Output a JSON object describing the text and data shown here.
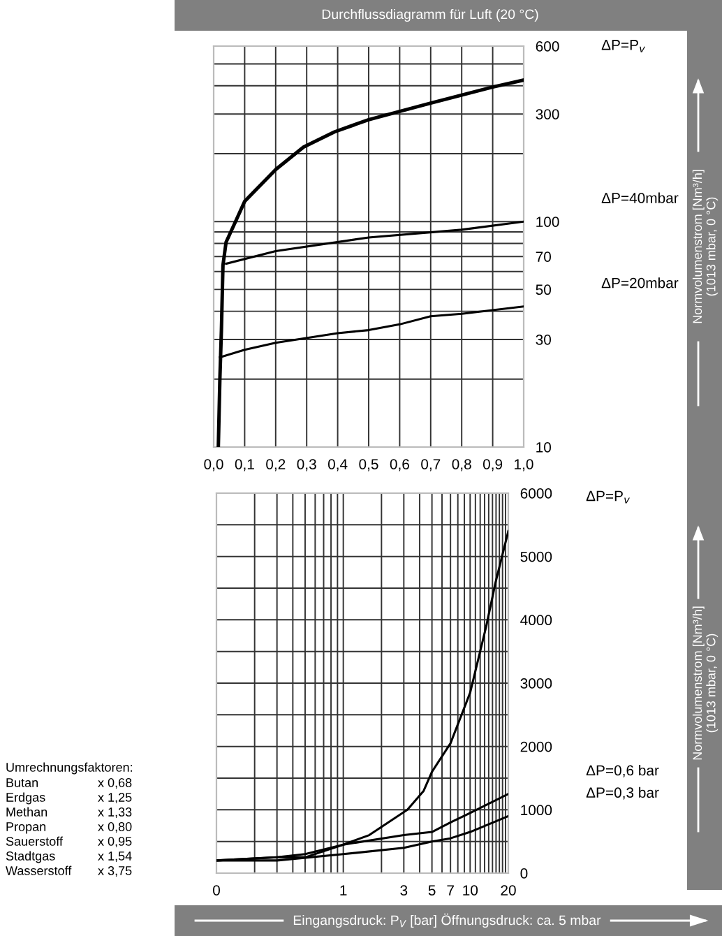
{
  "chart_data": [
    {
      "type": "line",
      "title": "Durchflussdiagramm für Luft (20 °C)",
      "ylabel": "Normvolumenstrom [Nm³/h]\n(1013 mbar, 0 °C)",
      "log": "y",
      "grid": true,
      "xlim": [
        0,
        1
      ],
      "xticks": [
        {
          "value": 0,
          "label": "0,0"
        },
        {
          "value": 0.1,
          "label": "0,1"
        },
        {
          "value": 0.2,
          "label": "0,2"
        },
        {
          "value": 0.3,
          "label": "0,3"
        },
        {
          "value": 0.4,
          "label": "0,4"
        },
        {
          "value": 0.5,
          "label": "0,5"
        },
        {
          "value": 0.6,
          "label": "0,6"
        },
        {
          "value": 0.7,
          "label": "0,7"
        },
        {
          "value": 0.8,
          "label": "0,8"
        },
        {
          "value": 0.9,
          "label": "0,9"
        },
        {
          "value": 1,
          "label": "1,0"
        }
      ],
      "ylim": [
        10,
        600
      ],
      "yticks": [
        10,
        {
          "value": 20,
          "label": null
        },
        30,
        {
          "value": 40,
          "label": null
        },
        50,
        {
          "value": 60,
          "label": null
        },
        70,
        {
          "value": 80,
          "label": null
        },
        {
          "value": 90,
          "label": null
        },
        100,
        {
          "value": 200,
          "label": null
        },
        300,
        {
          "value": 400,
          "label": null
        },
        {
          "value": 500,
          "label": null
        },
        600
      ],
      "series": [
        {
          "name": "ΔP=P$_{v}$",
          "color": "#000000",
          "x": [
            0.015,
            0.02,
            0.025,
            0.03,
            0.04,
            0.072,
            0.1,
            0.2,
            0.29,
            0.39,
            0.5,
            0.7,
            0.9,
            1.0
          ],
          "values": [
            10,
            20,
            33,
            64,
            81,
            101,
            123,
            170,
            214,
            250,
            283,
            335,
            395,
            424
          ]
        },
        {
          "name": "ΔP=40mbar",
          "color": "#000000",
          "x": [
            0.04,
            0.2,
            0.5,
            0.8,
            1.0
          ],
          "values": [
            65,
            74,
            85,
            92,
            100
          ]
        },
        {
          "name": "ΔP=20mbar",
          "color": "#000000",
          "x": [
            0.02,
            0.1,
            0.2,
            0.4,
            0.5,
            0.6,
            0.7,
            0.8,
            1.0
          ],
          "values": [
            25,
            27,
            29,
            32,
            33,
            35,
            38,
            39,
            42
          ]
        }
      ]
    },
    {
      "type": "line",
      "xlabel": "Eingangsdruck: P$_{V}$ [bar] Öffnungsdruck: ca. 5 mbar",
      "ylabel": "Normvolumenstrom [Nm³/h]\n(1013 mbar, 0 °C)",
      "log": "x",
      "grid": true,
      "xlim": [
        0.1,
        20
      ],
      "xticks": [
        {
          "value": 0.1,
          "label": "0"
        },
        {
          "value": 0.2,
          "label": null
        },
        {
          "value": 0.3,
          "label": null
        },
        {
          "value": 0.4,
          "label": null
        },
        {
          "value": 0.5,
          "label": null
        },
        {
          "value": 0.6,
          "label": null
        },
        {
          "value": 0.7,
          "label": null
        },
        {
          "value": 0.8,
          "label": null
        },
        {
          "value": 0.9,
          "label": null
        },
        1,
        {
          "value": 2,
          "label": null
        },
        3,
        {
          "value": 4,
          "label": null
        },
        5,
        {
          "value": 6,
          "label": null
        },
        7,
        {
          "value": 8,
          "label": null
        },
        {
          "value": 9,
          "label": null
        },
        10,
        {
          "value": 11,
          "label": null
        },
        {
          "value": 12,
          "label": null
        },
        {
          "value": 13,
          "label": null
        },
        {
          "value": 14,
          "label": null
        },
        {
          "value": 15,
          "label": null
        },
        {
          "value": 16,
          "label": null
        },
        {
          "value": 17,
          "label": null
        },
        {
          "value": 18,
          "label": null
        },
        {
          "value": 19,
          "label": null
        },
        20
      ],
      "ylim": [
        0,
        6000
      ],
      "yticks": [
        0,
        {
          "value": 500,
          "label": null
        },
        1000,
        {
          "value": 1500,
          "label": null
        },
        2000,
        {
          "value": 2500,
          "label": null
        },
        3000,
        {
          "value": 3500,
          "label": null
        },
        4000,
        {
          "value": 4500,
          "label": null
        },
        5000,
        {
          "value": 5500,
          "label": null
        },
        6000
      ],
      "series": [
        {
          "name": "ΔP=P$_{v}$",
          "color": "#000000",
          "x": [
            0.1,
            0.3,
            0.5,
            1,
            1.6,
            3.2,
            4.3,
            5,
            7,
            10,
            13.4,
            15.9,
            20
          ],
          "values": [
            200,
            250,
            250,
            450,
            600,
            1000,
            1300,
            1600,
            2050,
            2850,
            3900,
            4600,
            5400
          ]
        },
        {
          "name": "ΔP=0,6 bar",
          "color": "#000000",
          "x": [
            0.1,
            0.3,
            0.5,
            1,
            3,
            5,
            7,
            10,
            20
          ],
          "values": [
            200,
            250,
            300,
            450,
            600,
            650,
            800,
            950,
            1250
          ]
        },
        {
          "name": "ΔP=0,3 bar",
          "color": "#000000",
          "x": [
            0.1,
            0.3,
            1,
            3,
            5,
            7,
            10,
            20
          ],
          "values": [
            200,
            200,
            300,
            400,
            500,
            550,
            650,
            900
          ]
        }
      ],
      "annotations": [
        "Umrechnungsfaktoren:",
        "Butan",
        "x 0,68",
        "Erdgas",
        "x 1,25",
        "Methan",
        "x 1,33",
        "Propan",
        "x 0,80",
        "Sauerstoff",
        "x 0,95",
        "Stadtgas",
        "x 1,54",
        "Wasserstoff",
        "x 3,75"
      ]
    }
  ]
}
